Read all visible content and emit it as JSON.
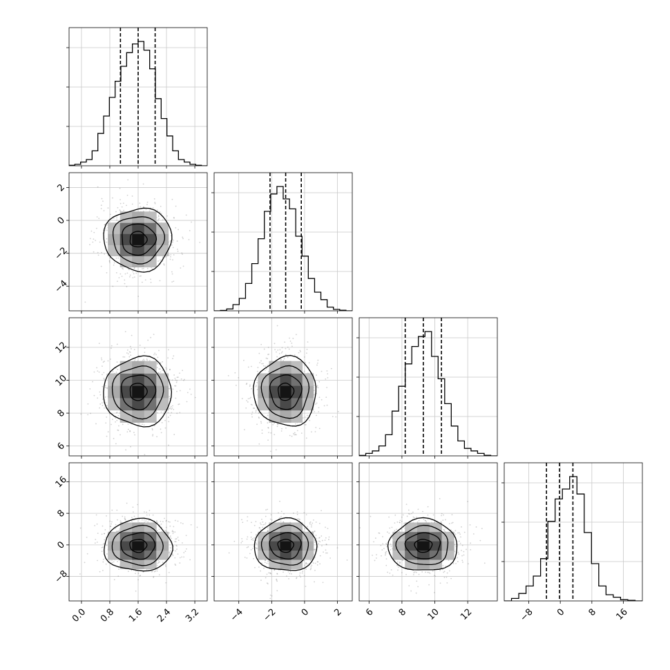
{
  "chart_data": {
    "type": "corner",
    "colors": {
      "line": "#000000",
      "grid": "#c8c8c8",
      "scatter": "#777777"
    },
    "params": [
      {
        "range": [
          -0.35,
          3.55
        ],
        "ticks": [
          0.0,
          0.8,
          1.6,
          2.4,
          3.2
        ],
        "tick_labels": [
          "0.0",
          "0.8",
          "1.6",
          "2.4",
          "3.2"
        ],
        "quantiles": [
          1.1,
          1.6,
          2.08
        ],
        "mean": 1.6,
        "sd": 0.48
      },
      {
        "range": [
          -5.5,
          2.9
        ],
        "ticks": [
          -4,
          -2,
          0,
          2
        ],
        "tick_labels": [
          "−4",
          "−2",
          "0",
          "2"
        ],
        "quantiles": [
          -2.1,
          -1.15,
          -0.2
        ],
        "mean": -1.15,
        "sd": 0.95
      },
      {
        "range": [
          5.4,
          13.8
        ],
        "ticks": [
          6,
          8,
          10,
          12
        ],
        "tick_labels": [
          "6",
          "8",
          "10",
          "12"
        ],
        "quantiles": [
          8.2,
          9.3,
          10.4
        ],
        "mean": 9.3,
        "sd": 1.05
      },
      {
        "range": [
          -14.2,
          20.8
        ],
        "ticks": [
          -8,
          0,
          8,
          16
        ],
        "tick_labels": [
          "−8",
          "0",
          "8",
          "16"
        ],
        "quantiles": [
          -3.5,
          -0.2,
          3.2
        ],
        "mean": -0.2,
        "sd": 3.3
      }
    ],
    "histograms": [
      [
        0.004,
        0.012,
        0.03,
        0.05,
        0.12,
        0.26,
        0.4,
        0.55,
        0.68,
        0.8,
        0.91,
        0.98,
        1.0,
        0.93,
        0.78,
        0.54,
        0.38,
        0.24,
        0.12,
        0.05,
        0.03,
        0.012,
        0.004,
        0.0
      ],
      [
        0.0,
        0.003,
        0.015,
        0.05,
        0.1,
        0.22,
        0.38,
        0.58,
        0.8,
        0.94,
        1.0,
        0.9,
        0.82,
        0.6,
        0.44,
        0.26,
        0.15,
        0.09,
        0.03,
        0.012,
        0.005,
        0.0
      ],
      [
        0.004,
        0.02,
        0.04,
        0.08,
        0.17,
        0.36,
        0.56,
        0.74,
        0.88,
        0.96,
        1.0,
        0.8,
        0.62,
        0.42,
        0.24,
        0.12,
        0.06,
        0.04,
        0.02,
        0.005,
        0.0
      ],
      [
        0.0,
        0.02,
        0.06,
        0.12,
        0.2,
        0.34,
        0.64,
        0.82,
        0.9,
        1.0,
        0.86,
        0.55,
        0.3,
        0.12,
        0.05,
        0.03,
        0.01,
        0.005,
        0.0
      ]
    ],
    "contour_levels": [
      0.5,
      1.0,
      1.5,
      2.0
    ],
    "scatter_points_per_panel": 700,
    "scatter_seed": 7
  }
}
